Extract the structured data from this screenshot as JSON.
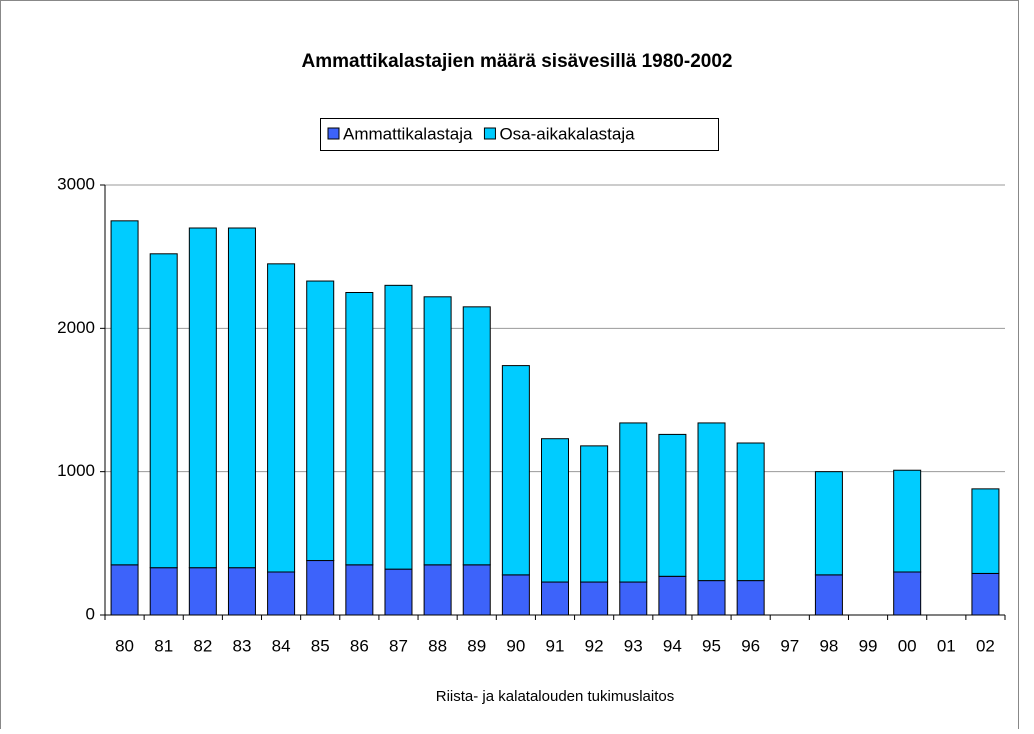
{
  "chart_data": {
    "type": "stacked_bar",
    "title": "Ammattikalastajien määrä sisävesillä 1980-2002",
    "source": "Riista- ja kalatalouden tukimuslaitos",
    "categories": [
      "80",
      "81",
      "82",
      "83",
      "84",
      "85",
      "86",
      "87",
      "88",
      "89",
      "90",
      "91",
      "92",
      "93",
      "94",
      "95",
      "96",
      "97",
      "98",
      "99",
      "00",
      "01",
      "02"
    ],
    "series": [
      {
        "name": "Ammattikalastaja",
        "color": "#3d63fa",
        "values": [
          350,
          330,
          330,
          330,
          300,
          380,
          350,
          320,
          350,
          350,
          280,
          230,
          230,
          230,
          270,
          240,
          240,
          null,
          280,
          null,
          300,
          null,
          290
        ]
      },
      {
        "name": "Osa-aikakalastaja",
        "color": "#00ccff",
        "values": [
          2400,
          2190,
          2370,
          2370,
          2150,
          1950,
          1900,
          1980,
          1870,
          1800,
          1460,
          1000,
          950,
          1110,
          990,
          1100,
          960,
          null,
          720,
          null,
          710,
          null,
          590
        ]
      }
    ],
    "ylim": [
      0,
      3000
    ],
    "yticks": [
      0,
      1000,
      2000,
      3000
    ],
    "grid": true,
    "legend": "top"
  }
}
